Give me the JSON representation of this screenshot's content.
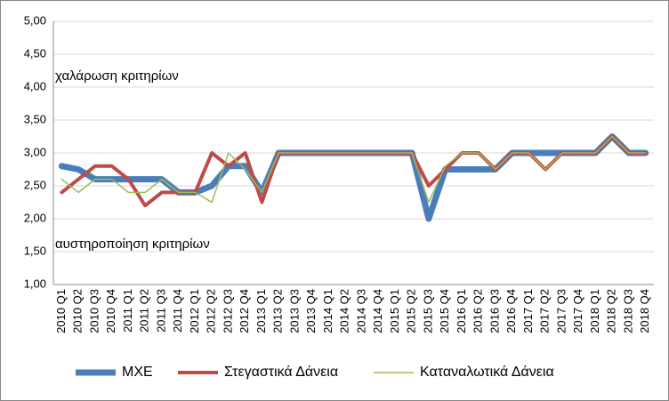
{
  "chart_data": {
    "type": "line",
    "categories": [
      "2010 Q1",
      "2010 Q2",
      "2010 Q3",
      "2010 Q4",
      "2011 Q1",
      "2011 Q2",
      "2011 Q3",
      "2011 Q4",
      "2012 Q1",
      "2012 Q2",
      "2012 Q3",
      "2012 Q4",
      "2013 Q1",
      "2013 Q2",
      "2013 Q3",
      "2013 Q4",
      "2014 Q1",
      "2014 Q2",
      "2014 Q3",
      "2014 Q4",
      "2015 Q1",
      "2015 Q2",
      "2015 Q3",
      "2015 Q4",
      "2016 Q1",
      "2016 Q2",
      "2016 Q3",
      "2016 Q4",
      "2017 Q1",
      "2017 Q2",
      "2017 Q3",
      "2017 Q4",
      "2018 Q1",
      "2018 Q2",
      "2018 Q3",
      "2018 Q4"
    ],
    "series": [
      {
        "name": "ΜΧΕ",
        "color": "#4a7ebb",
        "values": [
          2.8,
          2.75,
          2.6,
          2.6,
          2.6,
          2.6,
          2.6,
          2.4,
          2.4,
          2.5,
          2.8,
          2.8,
          2.4,
          3.0,
          3.0,
          3.0,
          3.0,
          3.0,
          3.0,
          3.0,
          3.0,
          3.0,
          2.0,
          2.75,
          2.75,
          2.75,
          2.75,
          3.0,
          3.0,
          3.0,
          3.0,
          3.0,
          3.0,
          3.25,
          3.0,
          3.0
        ]
      },
      {
        "name": "Στεγαστικά Δάνεια",
        "color": "#be4b48",
        "values": [
          2.4,
          2.6,
          2.8,
          2.8,
          2.6,
          2.2,
          2.4,
          2.4,
          2.4,
          3.0,
          2.8,
          3.0,
          2.25,
          3.0,
          3.0,
          3.0,
          3.0,
          3.0,
          3.0,
          3.0,
          3.0,
          3.0,
          2.5,
          2.75,
          3.0,
          3.0,
          2.75,
          3.0,
          3.0,
          2.75,
          3.0,
          3.0,
          3.0,
          3.25,
          3.0,
          3.0
        ]
      },
      {
        "name": "Καταναλωτικά Δάνεια",
        "color": "#9bbb59",
        "values": [
          2.6,
          2.4,
          2.6,
          2.6,
          2.4,
          2.4,
          2.6,
          2.4,
          2.4,
          2.25,
          3.0,
          2.75,
          2.4,
          3.0,
          3.0,
          3.0,
          3.0,
          3.0,
          3.0,
          3.0,
          3.0,
          3.0,
          2.25,
          2.8,
          3.0,
          3.0,
          2.75,
          3.0,
          3.0,
          2.75,
          3.0,
          3.0,
          3.0,
          3.25,
          3.0,
          3.0
        ]
      }
    ],
    "widths": [
      7,
      4,
      1.5
    ],
    "annotations": [
      "χαλάρωση κριτηρίων",
      "αυστηροποίηση κριτηρίων"
    ],
    "ylim": [
      1.0,
      5.0
    ],
    "yticks": [
      {
        "value": 1.0,
        "label": "1,00"
      },
      {
        "value": 1.5,
        "label": "1,50"
      },
      {
        "value": 2.0,
        "label": "2,00"
      },
      {
        "value": 2.5,
        "label": "2,50"
      },
      {
        "value": 3.0,
        "label": "3,00"
      },
      {
        "value": 3.5,
        "label": "3,50"
      },
      {
        "value": 4.0,
        "label": "4,00"
      },
      {
        "value": 4.5,
        "label": "4,50"
      },
      {
        "value": 5.0,
        "label": "5,00"
      }
    ],
    "grid": true
  }
}
